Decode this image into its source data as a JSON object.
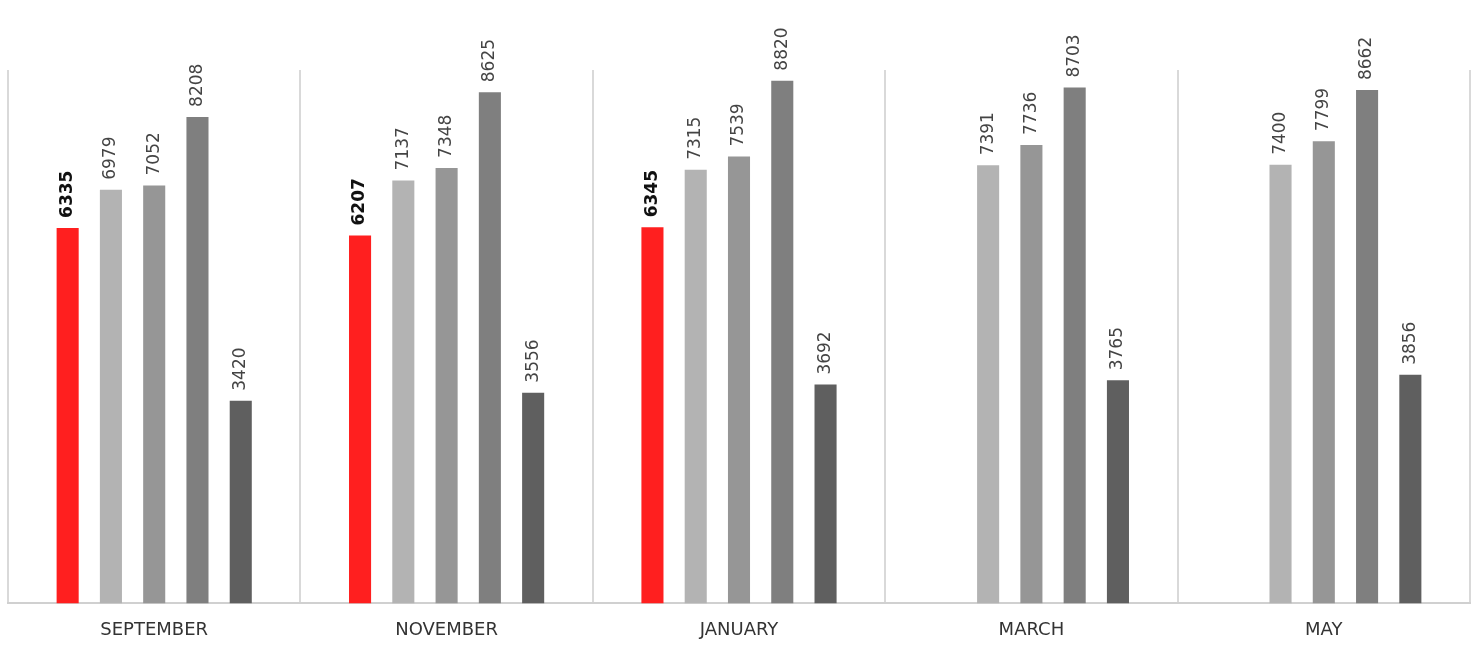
{
  "chart_data": {
    "type": "bar",
    "categories": [
      "SEPTEMBER",
      "NOVEMBER",
      "JANUARY",
      "MARCH",
      "MAY"
    ],
    "series": [
      {
        "color": "#ff1f1f",
        "values": [
          6335,
          6207,
          6345,
          null,
          null
        ]
      },
      {
        "color": "#b3b3b3",
        "values": [
          6979,
          7137,
          7315,
          7391,
          7400
        ]
      },
      {
        "color": "#969696",
        "values": [
          7052,
          7348,
          7539,
          7736,
          7799
        ]
      },
      {
        "color": "#7f7f7f",
        "values": [
          8208,
          8625,
          8820,
          8703,
          8662
        ]
      },
      {
        "color": "#5f5f5f",
        "values": [
          3420,
          3556,
          3692,
          3765,
          3856
        ]
      }
    ],
    "data_labels": true,
    "grid": "x",
    "legend": false,
    "tick_labels": "x"
  }
}
